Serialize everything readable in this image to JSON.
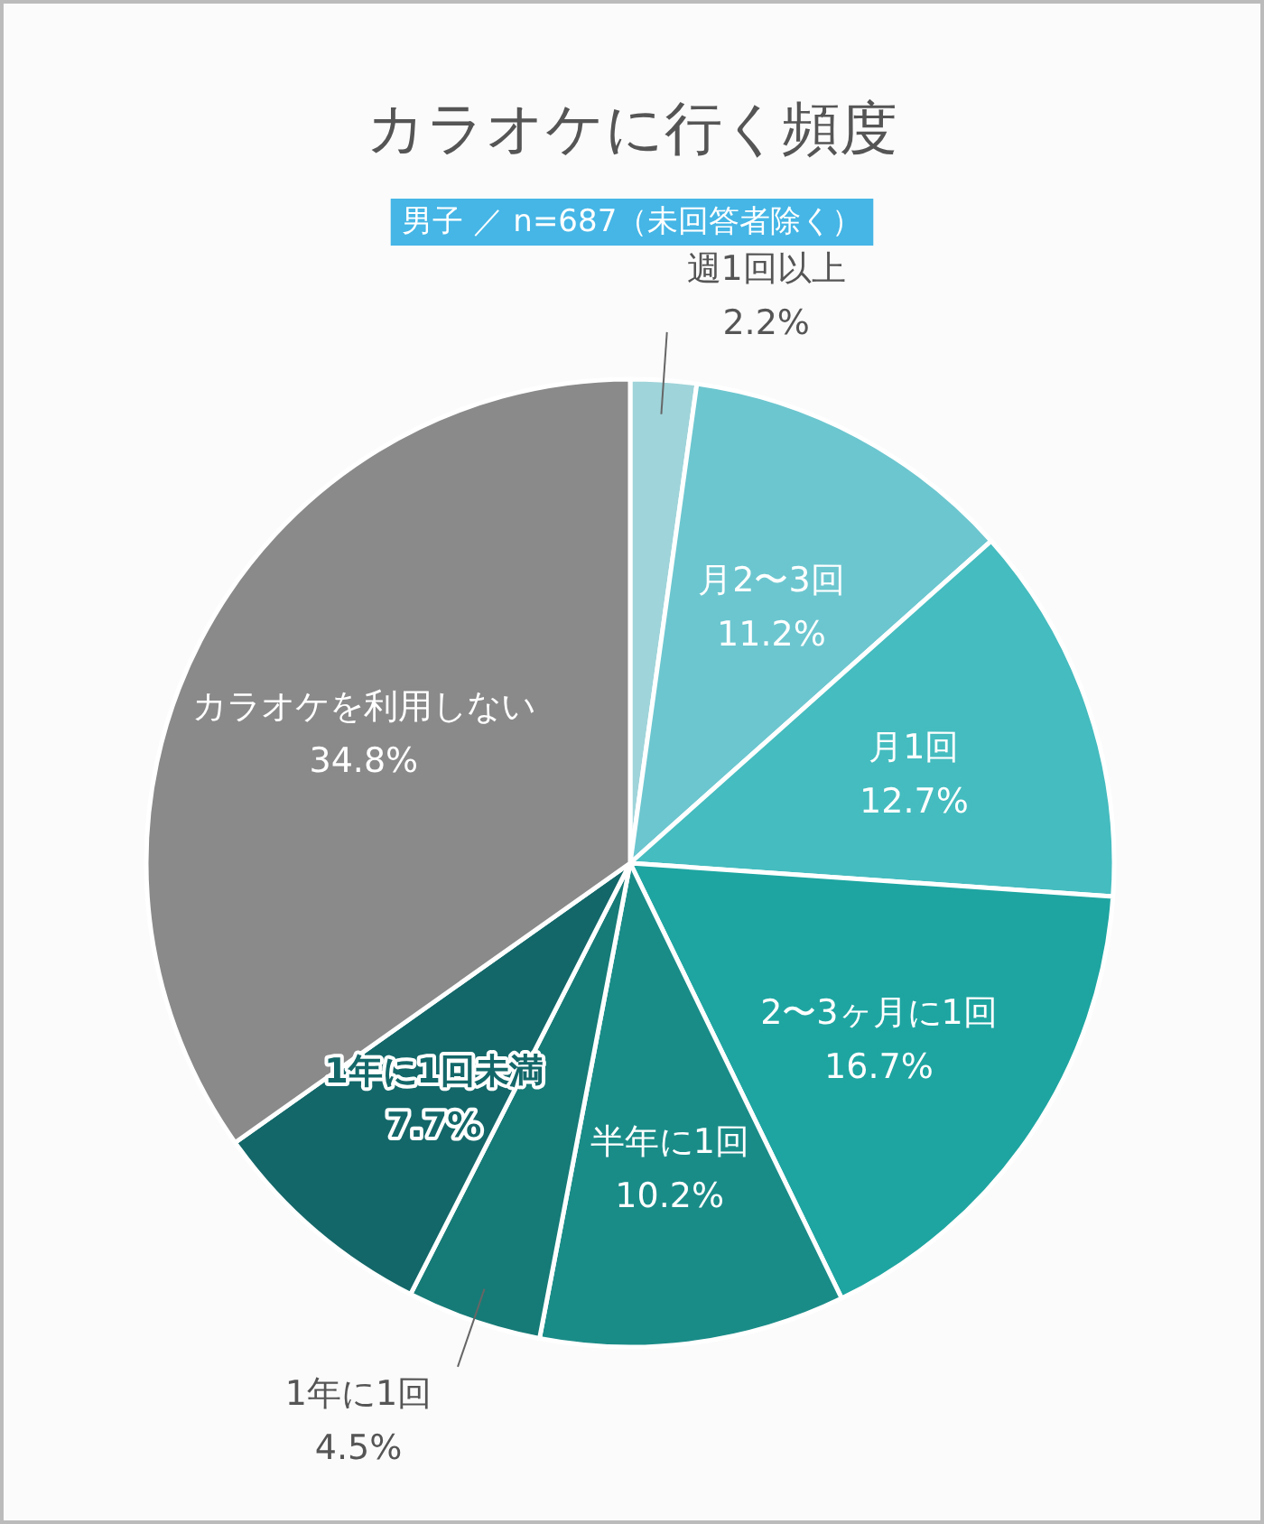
{
  "chart_data": {
    "type": "pie",
    "title": "カラオケに行く頻度",
    "subtitle": "男子 ／ n=687（未回答者除く）",
    "categories": [
      "週1回以上",
      "月2〜3回",
      "月1回",
      "2〜3ヶ月に1回",
      "半年に1回",
      "1年に1回",
      "1年に1回未満",
      "カラオケを利用しない"
    ],
    "values": [
      2.2,
      11.2,
      12.7,
      16.7,
      10.2,
      4.5,
      7.7,
      34.8
    ],
    "value_labels": [
      "2.2%",
      "11.2%",
      "12.7%",
      "16.7%",
      "10.2%",
      "4.5%",
      "7.7%",
      "34.8%"
    ],
    "colors": [
      "#9fd4da",
      "#6cc6cf",
      "#45bcbf",
      "#1ea5a1",
      "#1a8c88",
      "#167b77",
      "#136769",
      "#8a8a8a"
    ]
  }
}
